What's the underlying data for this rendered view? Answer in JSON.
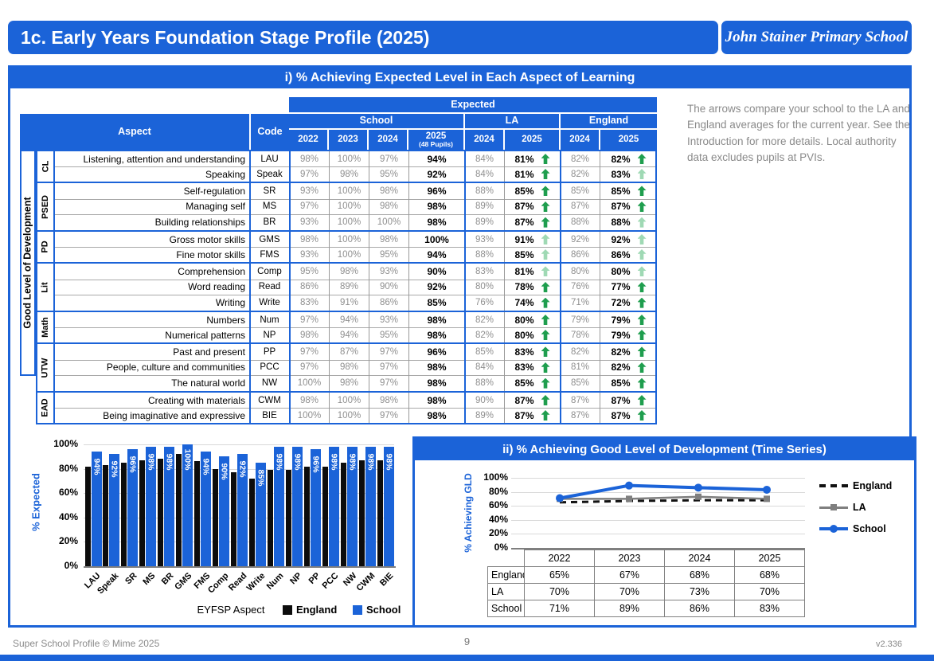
{
  "colors": {
    "blue": "#1b63d8",
    "arrow_dark": "#1f9e4e",
    "arrow_light": "#9fd9b4",
    "gray_value": "#8f8f8f"
  },
  "header": {
    "title": "1c. Early Years Foundation Stage Profile (2025)",
    "school": "John Stainer Primary School"
  },
  "section1": {
    "title": "i) % Achieving Expected Level in Each Aspect of Learning",
    "note": "The arrows compare your school to the LA and England averages for the current year. See the Introduction for more details. Local authority data excludes pupils at PVIs.",
    "table": {
      "headers": {
        "expected": "Expected",
        "school": "School",
        "la": "LA",
        "england": "England",
        "aspect": "Aspect",
        "code": "Code",
        "school_years": [
          "2022",
          "2023",
          "2024"
        ],
        "school_2025": "2025",
        "school_2025_sub": "(48 Pupils)",
        "la_years": [
          "2024",
          "2025"
        ],
        "england_years": [
          "2024",
          "2025"
        ]
      },
      "gld_label": "Good Level of Development",
      "groups": [
        {
          "code": "CL",
          "in_gld": true,
          "rows": [
            {
              "aspect": "Listening, attention and understanding",
              "code": "LAU",
              "school": [
                98,
                100,
                97
              ],
              "school_2025": 94,
              "la_2024": 84,
              "la_2025": 81,
              "la_arrow": "dark",
              "eng_2024": 82,
              "eng_2025": 82,
              "eng_arrow": "dark"
            },
            {
              "aspect": "Speaking",
              "code": "Speak",
              "school": [
                97,
                98,
                95
              ],
              "school_2025": 92,
              "la_2024": 84,
              "la_2025": 81,
              "la_arrow": "dark",
              "eng_2024": 82,
              "eng_2025": 83,
              "eng_arrow": "light"
            }
          ]
        },
        {
          "code": "PSED",
          "in_gld": true,
          "rows": [
            {
              "aspect": "Self-regulation",
              "code": "SR",
              "school": [
                93,
                100,
                98
              ],
              "school_2025": 96,
              "la_2024": 88,
              "la_2025": 85,
              "la_arrow": "dark",
              "eng_2024": 85,
              "eng_2025": 85,
              "eng_arrow": "dark"
            },
            {
              "aspect": "Managing self",
              "code": "MS",
              "school": [
                97,
                100,
                98
              ],
              "school_2025": 98,
              "la_2024": 89,
              "la_2025": 87,
              "la_arrow": "dark",
              "eng_2024": 87,
              "eng_2025": 87,
              "eng_arrow": "dark"
            },
            {
              "aspect": "Building relationships",
              "code": "BR",
              "school": [
                93,
                100,
                100
              ],
              "school_2025": 98,
              "la_2024": 89,
              "la_2025": 87,
              "la_arrow": "dark",
              "eng_2024": 88,
              "eng_2025": 88,
              "eng_arrow": "light"
            }
          ]
        },
        {
          "code": "PD",
          "in_gld": true,
          "rows": [
            {
              "aspect": "Gross motor skills",
              "code": "GMS",
              "school": [
                98,
                100,
                98
              ],
              "school_2025": 100,
              "la_2024": 93,
              "la_2025": 91,
              "la_arrow": "light",
              "eng_2024": 92,
              "eng_2025": 92,
              "eng_arrow": "light"
            },
            {
              "aspect": "Fine motor skills",
              "code": "FMS",
              "school": [
                93,
                100,
                95
              ],
              "school_2025": 94,
              "la_2024": 88,
              "la_2025": 85,
              "la_arrow": "light",
              "eng_2024": 86,
              "eng_2025": 86,
              "eng_arrow": "light"
            }
          ]
        },
        {
          "code": "Lit",
          "in_gld": true,
          "rows": [
            {
              "aspect": "Comprehension",
              "code": "Comp",
              "school": [
                95,
                98,
                93
              ],
              "school_2025": 90,
              "la_2024": 83,
              "la_2025": 81,
              "la_arrow": "light",
              "eng_2024": 80,
              "eng_2025": 80,
              "eng_arrow": "light"
            },
            {
              "aspect": "Word reading",
              "code": "Read",
              "school": [
                86,
                89,
                90
              ],
              "school_2025": 92,
              "la_2024": 80,
              "la_2025": 78,
              "la_arrow": "dark",
              "eng_2024": 76,
              "eng_2025": 77,
              "eng_arrow": "dark"
            },
            {
              "aspect": "Writing",
              "code": "Write",
              "school": [
                83,
                91,
                86
              ],
              "school_2025": 85,
              "la_2024": 76,
              "la_2025": 74,
              "la_arrow": "dark",
              "eng_2024": 71,
              "eng_2025": 72,
              "eng_arrow": "dark"
            }
          ]
        },
        {
          "code": "Math",
          "in_gld": true,
          "rows": [
            {
              "aspect": "Numbers",
              "code": "Num",
              "school": [
                97,
                94,
                93
              ],
              "school_2025": 98,
              "la_2024": 82,
              "la_2025": 80,
              "la_arrow": "dark",
              "eng_2024": 79,
              "eng_2025": 79,
              "eng_arrow": "dark"
            },
            {
              "aspect": "Numerical patterns",
              "code": "NP",
              "school": [
                98,
                94,
                95
              ],
              "school_2025": 98,
              "la_2024": 82,
              "la_2025": 80,
              "la_arrow": "dark",
              "eng_2024": 78,
              "eng_2025": 79,
              "eng_arrow": "dark"
            }
          ]
        },
        {
          "code": "UTW",
          "in_gld": false,
          "rows": [
            {
              "aspect": "Past and present",
              "code": "PP",
              "school": [
                97,
                87,
                97
              ],
              "school_2025": 96,
              "la_2024": 85,
              "la_2025": 83,
              "la_arrow": "dark",
              "eng_2024": 82,
              "eng_2025": 82,
              "eng_arrow": "dark"
            },
            {
              "aspect": "People, culture and communities",
              "code": "PCC",
              "school": [
                97,
                98,
                97
              ],
              "school_2025": 98,
              "la_2024": 84,
              "la_2025": 83,
              "la_arrow": "dark",
              "eng_2024": 81,
              "eng_2025": 82,
              "eng_arrow": "dark"
            },
            {
              "aspect": "The natural world",
              "code": "NW",
              "school": [
                100,
                98,
                97
              ],
              "school_2025": 98,
              "la_2024": 88,
              "la_2025": 85,
              "la_arrow": "dark",
              "eng_2024": 85,
              "eng_2025": 85,
              "eng_arrow": "dark"
            }
          ]
        },
        {
          "code": "EAD",
          "in_gld": false,
          "rows": [
            {
              "aspect": "Creating with materials",
              "code": "CWM",
              "school": [
                98,
                100,
                98
              ],
              "school_2025": 98,
              "la_2024": 90,
              "la_2025": 87,
              "la_arrow": "dark",
              "eng_2024": 87,
              "eng_2025": 87,
              "eng_arrow": "dark"
            },
            {
              "aspect": "Being imaginative and expressive",
              "code": "BIE",
              "school": [
                100,
                100,
                97
              ],
              "school_2025": 98,
              "la_2024": 89,
              "la_2025": 87,
              "la_arrow": "dark",
              "eng_2024": 87,
              "eng_2025": 87,
              "eng_arrow": "dark"
            }
          ]
        }
      ]
    }
  },
  "chart_data": [
    {
      "type": "bar",
      "categories": [
        "LAU",
        "Speak",
        "SR",
        "MS",
        "BR",
        "GMS",
        "FMS",
        "Comp",
        "Read",
        "Write",
        "Num",
        "NP",
        "PP",
        "PCC",
        "NW",
        "CWM",
        "BIE"
      ],
      "series": [
        {
          "name": "England",
          "color": "#0c0c0c",
          "values": [
            82,
            83,
            85,
            87,
            88,
            92,
            86,
            80,
            77,
            72,
            79,
            79,
            82,
            82,
            85,
            87,
            87
          ]
        },
        {
          "name": "School",
          "color": "#1b63d8",
          "values": [
            94,
            92,
            96,
            98,
            98,
            100,
            94,
            90,
            92,
            85,
            98,
            98,
            96,
            98,
            98,
            98,
            98
          ]
        }
      ],
      "xlabel": "EYFSP Aspect",
      "ylabel": "% Expected",
      "ylim": [
        0,
        100
      ],
      "yticks": [
        "0%",
        "20%",
        "40%",
        "60%",
        "80%",
        "100%"
      ],
      "grid": true,
      "legend_position": "bottom-right",
      "data_labels_series": "School"
    },
    {
      "type": "line",
      "title": "ii) % Achieving Good Level of Development (Time Series)",
      "x": [
        "2022",
        "2023",
        "2024",
        "2025"
      ],
      "series": [
        {
          "name": "England",
          "color": "#111111",
          "style": "dashed",
          "marker": "none",
          "values": [
            65,
            67,
            68,
            68
          ]
        },
        {
          "name": "LA",
          "color": "#7f7f7f",
          "style": "solid",
          "marker": "square",
          "values": [
            70,
            70,
            73,
            70
          ]
        },
        {
          "name": "School",
          "color": "#1b63d8",
          "style": "solid",
          "marker": "circle",
          "values": [
            71,
            89,
            86,
            83
          ]
        }
      ],
      "ylabel": "% Achieving GLD",
      "ylim": [
        0,
        100
      ],
      "yticks": [
        "0%",
        "20%",
        "40%",
        "60%",
        "80%",
        "100%"
      ],
      "grid": true,
      "legend_position": "right",
      "table": {
        "unit": "%"
      }
    }
  ],
  "footer": {
    "left": "Super School Profile © Mime 2025",
    "page": "9",
    "version": "v2.336"
  }
}
